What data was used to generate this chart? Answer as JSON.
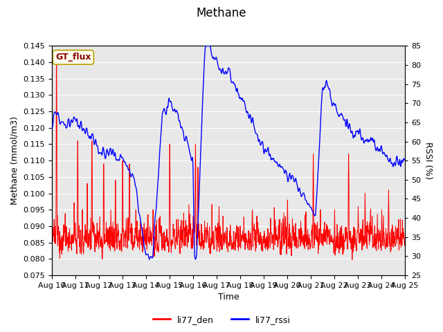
{
  "title": "Methane",
  "xlabel": "Time",
  "ylabel_left": "Methane (mmol/m3)",
  "ylabel_right": "RSSI (%)",
  "annotation": "GT_flux",
  "annotation_facecolor": "#fffff0",
  "annotation_edgecolor": "#b8a000",
  "annotation_textcolor": "#8b0000",
  "legend_labels": [
    "li77_den",
    "li77_rssi"
  ],
  "ylim_left": [
    0.075,
    0.145
  ],
  "ylim_right": [
    25,
    85
  ],
  "yticks_left": [
    0.075,
    0.08,
    0.085,
    0.09,
    0.095,
    0.1,
    0.105,
    0.11,
    0.115,
    0.12,
    0.125,
    0.13,
    0.135,
    0.14,
    0.145
  ],
  "yticks_right": [
    25,
    30,
    35,
    40,
    45,
    50,
    55,
    60,
    65,
    70,
    75,
    80,
    85
  ],
  "xtick_labels": [
    "Aug 10",
    "Aug 11",
    "Aug 12",
    "Aug 13",
    "Aug 14",
    "Aug 15",
    "Aug 16",
    "Aug 17",
    "Aug 18",
    "Aug 19",
    "Aug 20",
    "Aug 21",
    "Aug 22",
    "Aug 23",
    "Aug 24",
    "Aug 25"
  ],
  "bg_color": "#e8e8e8",
  "line_color_den": "red",
  "line_color_rssi": "blue",
  "title_fontsize": 12,
  "axis_fontsize": 9,
  "tick_fontsize": 8,
  "legend_fontsize": 9,
  "annotation_fontsize": 9
}
